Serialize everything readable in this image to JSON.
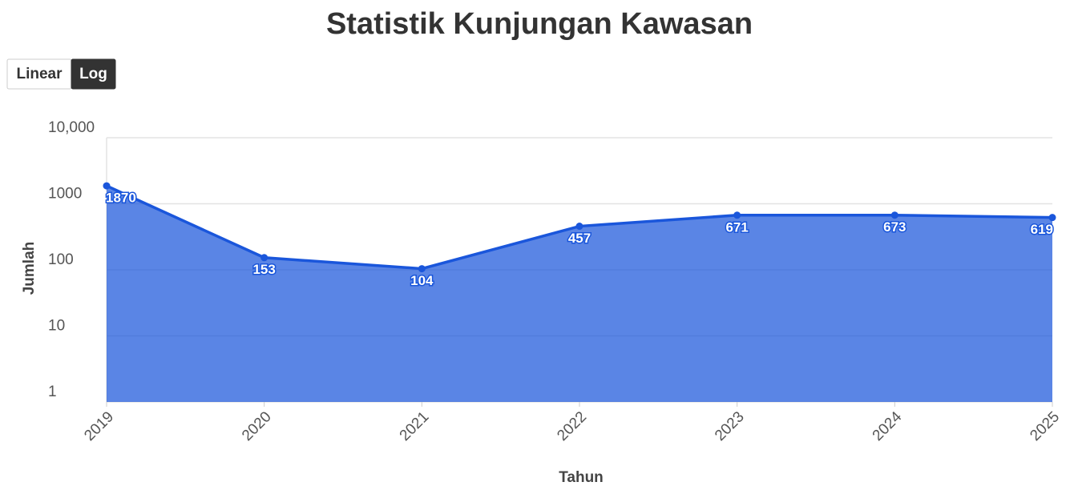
{
  "chart_data": {
    "type": "area",
    "title": "Statistik Kunjungan Kawasan",
    "scale_options": [
      "Linear",
      "Log"
    ],
    "log_scale": true,
    "categories": [
      "2019",
      "2020",
      "2021",
      "2022",
      "2023",
      "2024",
      "2025"
    ],
    "series": [
      {
        "name": "Jumlah",
        "color": "#1a56db",
        "values": [
          1870,
          153,
          104,
          457,
          671,
          673,
          619
        ]
      }
    ],
    "x_label": "Tahun",
    "y_label": "Jumlah",
    "ylim": [
      1,
      10000
    ],
    "yticks": [
      1,
      10,
      100,
      1000,
      {
        "value": 10000,
        "label": "10,000"
      }
    ],
    "grid": true
  }
}
